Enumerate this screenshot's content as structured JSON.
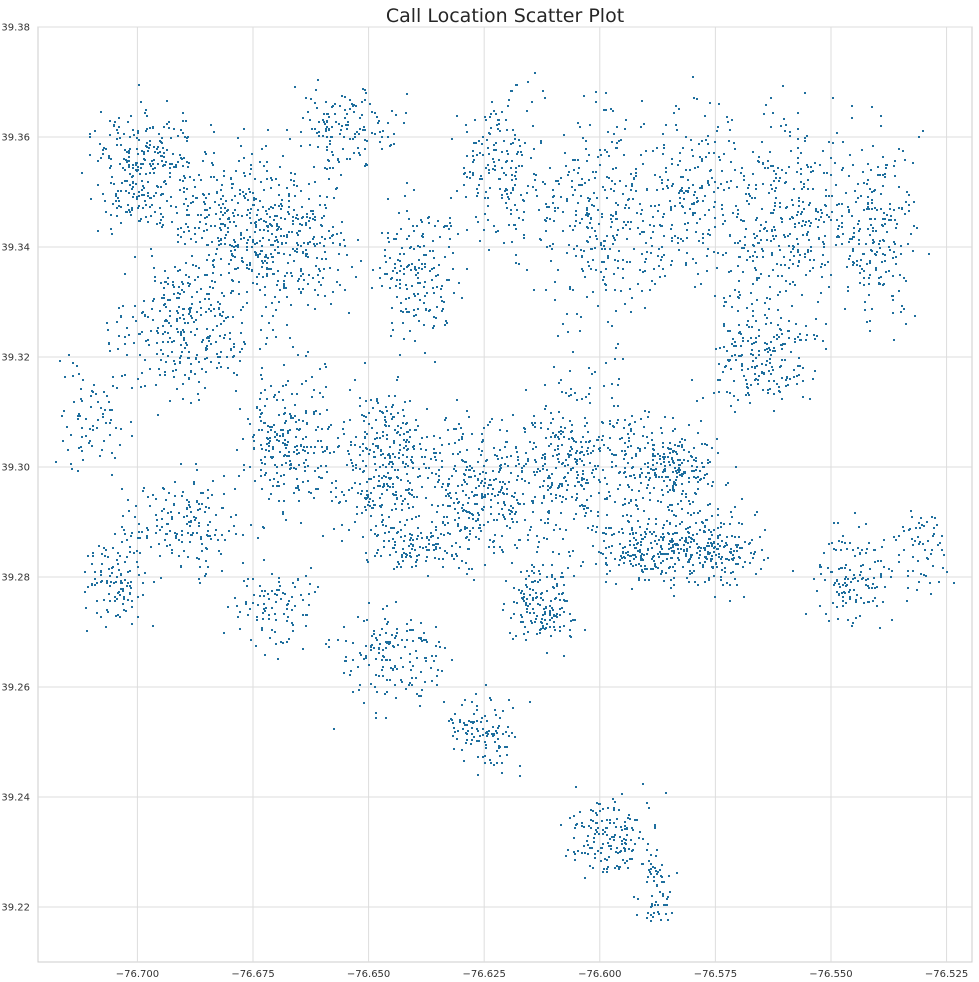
{
  "chart_data": {
    "type": "scatter",
    "title": "Call Location Scatter Plot",
    "xlabel": "",
    "ylabel": "",
    "xlim": [
      -76.7215,
      -76.5195
    ],
    "ylim": [
      39.21,
      39.38
    ],
    "x_ticks": [
      -76.7,
      -76.675,
      -76.65,
      -76.625,
      -76.6,
      -76.575,
      -76.55,
      -76.525
    ],
    "x_tick_labels": [
      "−76.700",
      "−76.675",
      "−76.650",
      "−76.625",
      "−76.600",
      "−76.575",
      "−76.550",
      "−76.525"
    ],
    "y_ticks": [
      39.22,
      39.24,
      39.26,
      39.28,
      39.3,
      39.32,
      39.34,
      39.36,
      39.38
    ],
    "y_tick_labels": [
      "39.22",
      "39.24",
      "39.26",
      "39.28",
      "39.30",
      "39.32",
      "39.34",
      "39.36",
      "39.38"
    ],
    "grid": true,
    "legend": "none",
    "marker_color": "#1f6f9e",
    "density_note": "point cloud approximated with clustered regions",
    "clusters": [
      {
        "cx": -76.7,
        "cy": 39.355,
        "rx": 0.012,
        "ry": 0.012,
        "n": 260
      },
      {
        "cx": -76.68,
        "cy": 39.345,
        "rx": 0.015,
        "ry": 0.015,
        "n": 320
      },
      {
        "cx": -76.69,
        "cy": 39.325,
        "rx": 0.015,
        "ry": 0.013,
        "n": 280
      },
      {
        "cx": -76.665,
        "cy": 39.34,
        "rx": 0.012,
        "ry": 0.014,
        "n": 240
      },
      {
        "cx": -76.655,
        "cy": 39.362,
        "rx": 0.012,
        "ry": 0.008,
        "n": 140
      },
      {
        "cx": -76.64,
        "cy": 39.335,
        "rx": 0.01,
        "ry": 0.014,
        "n": 180
      },
      {
        "cx": -76.622,
        "cy": 39.355,
        "rx": 0.01,
        "ry": 0.015,
        "n": 180
      },
      {
        "cx": -76.6,
        "cy": 39.345,
        "rx": 0.015,
        "ry": 0.02,
        "n": 320
      },
      {
        "cx": -76.58,
        "cy": 39.35,
        "rx": 0.01,
        "ry": 0.018,
        "n": 200
      },
      {
        "cx": -76.56,
        "cy": 39.345,
        "rx": 0.015,
        "ry": 0.02,
        "n": 340
      },
      {
        "cx": -76.54,
        "cy": 39.345,
        "rx": 0.01,
        "ry": 0.018,
        "n": 220
      },
      {
        "cx": -76.668,
        "cy": 39.305,
        "rx": 0.01,
        "ry": 0.015,
        "n": 240
      },
      {
        "cx": -76.645,
        "cy": 39.3,
        "rx": 0.014,
        "ry": 0.014,
        "n": 360
      },
      {
        "cx": -76.625,
        "cy": 39.295,
        "rx": 0.012,
        "ry": 0.014,
        "n": 300
      },
      {
        "cx": -76.605,
        "cy": 39.3,
        "rx": 0.014,
        "ry": 0.016,
        "n": 340
      },
      {
        "cx": -76.585,
        "cy": 39.3,
        "rx": 0.012,
        "ry": 0.01,
        "n": 260
      },
      {
        "cx": -76.575,
        "cy": 39.285,
        "rx": 0.012,
        "ry": 0.007,
        "n": 220
      },
      {
        "cx": -76.59,
        "cy": 39.285,
        "rx": 0.01,
        "ry": 0.006,
        "n": 180
      },
      {
        "cx": -76.565,
        "cy": 39.32,
        "rx": 0.012,
        "ry": 0.01,
        "n": 200
      },
      {
        "cx": -76.545,
        "cy": 39.28,
        "rx": 0.01,
        "ry": 0.01,
        "n": 140
      },
      {
        "cx": -76.53,
        "cy": 39.285,
        "rx": 0.006,
        "ry": 0.008,
        "n": 60
      },
      {
        "cx": -76.69,
        "cy": 39.29,
        "rx": 0.012,
        "ry": 0.01,
        "n": 160
      },
      {
        "cx": -76.705,
        "cy": 39.28,
        "rx": 0.008,
        "ry": 0.01,
        "n": 120
      },
      {
        "cx": -76.67,
        "cy": 39.275,
        "rx": 0.01,
        "ry": 0.008,
        "n": 100
      },
      {
        "cx": -76.645,
        "cy": 39.265,
        "rx": 0.012,
        "ry": 0.01,
        "n": 160
      },
      {
        "cx": -76.612,
        "cy": 39.275,
        "rx": 0.008,
        "ry": 0.008,
        "n": 160
      },
      {
        "cx": -76.625,
        "cy": 39.252,
        "rx": 0.008,
        "ry": 0.007,
        "n": 110
      },
      {
        "cx": -76.598,
        "cy": 39.233,
        "rx": 0.01,
        "ry": 0.008,
        "n": 160
      },
      {
        "cx": -76.588,
        "cy": 39.222,
        "rx": 0.004,
        "ry": 0.008,
        "n": 60
      },
      {
        "cx": -76.71,
        "cy": 39.31,
        "rx": 0.008,
        "ry": 0.012,
        "n": 80
      },
      {
        "cx": -76.64,
        "cy": 39.285,
        "rx": 0.01,
        "ry": 0.004,
        "n": 100
      }
    ]
  }
}
